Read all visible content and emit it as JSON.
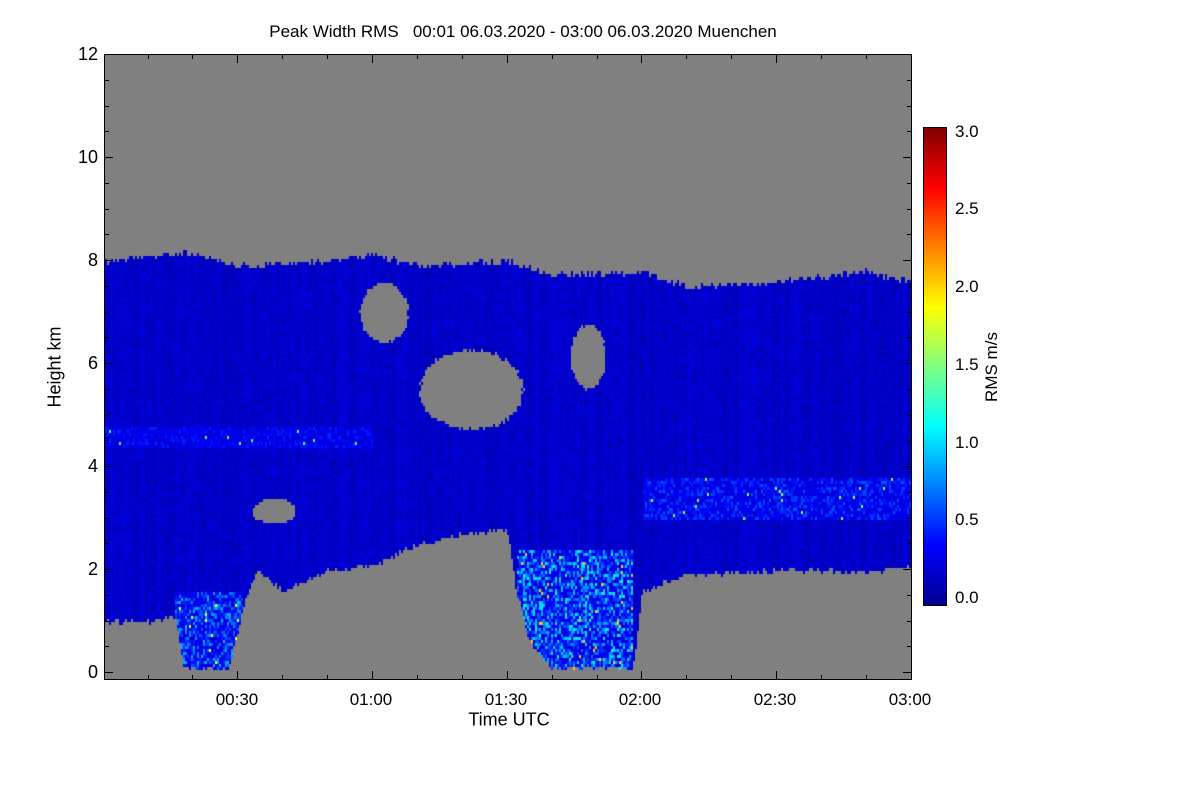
{
  "chart_data": {
    "type": "heatmap",
    "title": "Peak Width RMS   00:01 06.03.2020 - 03:00 06.03.2020 Muenchen",
    "xlabel": "Time UTC",
    "ylabel": "Height km",
    "xlim_minutes": [
      0,
      180
    ],
    "ylim_km": [
      0,
      12
    ],
    "x_ticks": [
      "00:30",
      "01:00",
      "01:30",
      "02:00",
      "02:30",
      "03:00"
    ],
    "x_tick_minutes": [
      30,
      60,
      90,
      120,
      150,
      180
    ],
    "y_ticks": [
      "0",
      "2",
      "4",
      "6",
      "8",
      "10",
      "12"
    ],
    "colorbar": {
      "label": "RMS m/s",
      "range": [
        0,
        3
      ],
      "ticks": [
        "0.0",
        "0.5",
        "1.0",
        "1.5",
        "2.0",
        "2.5",
        "3.0"
      ],
      "colormap": "jet",
      "missing_color": "#808080"
    },
    "echo_top_km": {
      "minutes": [
        0,
        10,
        20,
        30,
        40,
        50,
        60,
        70,
        80,
        90,
        100,
        110,
        120,
        130,
        140,
        150,
        160,
        170,
        180
      ],
      "values": [
        8.0,
        8.1,
        8.15,
        7.9,
        7.95,
        8.0,
        8.15,
        7.9,
        7.95,
        8.0,
        7.75,
        7.75,
        7.8,
        7.5,
        7.55,
        7.6,
        7.7,
        7.8,
        7.6
      ]
    },
    "echo_base_km": {
      "minutes": [
        0,
        10,
        16,
        18,
        28,
        31,
        34,
        40,
        50,
        60,
        70,
        80,
        90,
        92,
        95,
        100,
        110,
        118,
        120,
        130,
        140,
        150,
        160,
        170,
        180
      ],
      "values": [
        1.0,
        1.0,
        1.1,
        0.1,
        0.1,
        1.2,
        2.0,
        1.6,
        2.0,
        2.1,
        2.5,
        2.7,
        2.8,
        1.6,
        0.6,
        0.1,
        0.1,
        0.1,
        1.6,
        1.9,
        1.95,
        2.0,
        2.0,
        1.95,
        2.1
      ]
    },
    "data_gaps": [
      {
        "minutes": [
          57,
          68
        ],
        "km": [
          6.4,
          7.6
        ]
      },
      {
        "minutes": [
          70,
          94
        ],
        "km": [
          4.7,
          6.3
        ]
      },
      {
        "minutes": [
          104,
          112
        ],
        "km": [
          5.5,
          6.8
        ]
      },
      {
        "minutes": [
          33,
          43
        ],
        "km": [
          2.9,
          3.4
        ]
      }
    ],
    "enhanced_regions": [
      {
        "minutes": [
          16,
          31
        ],
        "km": [
          0,
          1.6
        ],
        "peak_rms": 0.9
      },
      {
        "minutes": [
          92,
          118
        ],
        "km": [
          0,
          2.4
        ],
        "peak_rms": 1.1
      },
      {
        "minutes": [
          0,
          60
        ],
        "km": [
          4.4,
          4.8
        ],
        "peak_rms": 0.45
      },
      {
        "minutes": [
          120,
          180
        ],
        "km": [
          3.0,
          3.8
        ],
        "peak_rms": 0.6
      }
    ],
    "background_rms": 0.2
  }
}
